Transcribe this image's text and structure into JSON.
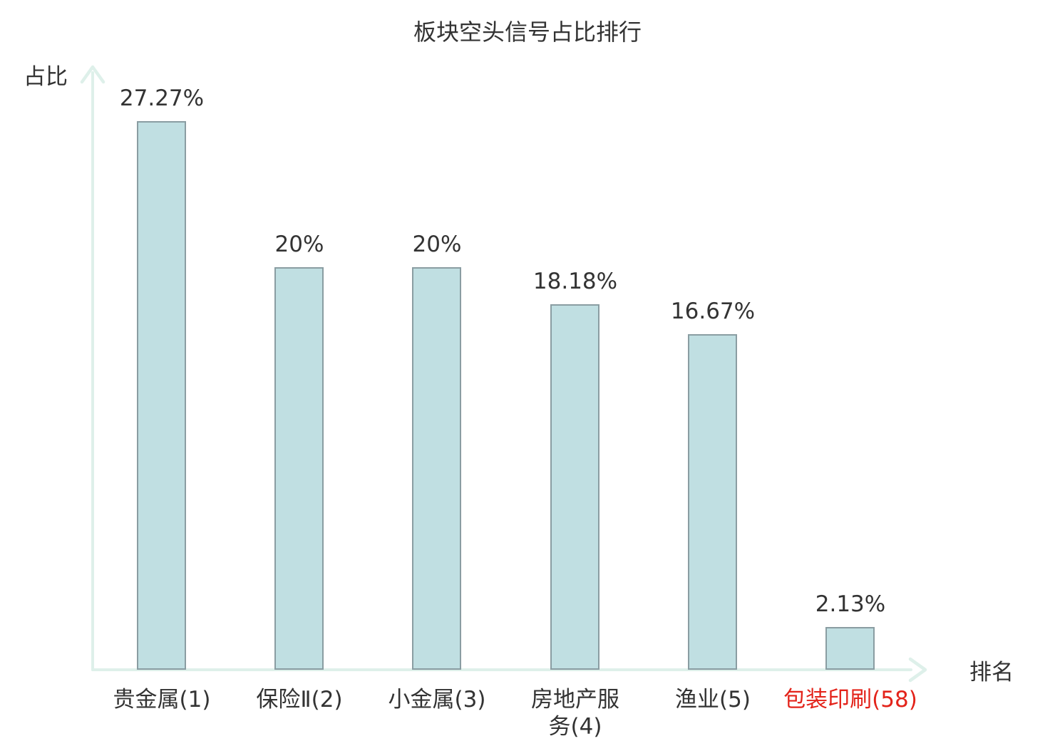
{
  "chart_data": {
    "type": "bar",
    "title": "板块空头信号占比排行",
    "ylabel": "占比",
    "xlabel": "排名",
    "categories": [
      {
        "label": "贵金属(1)",
        "rank": 1,
        "highlighted": false
      },
      {
        "label": "保险Ⅱ(2)",
        "rank": 2,
        "highlighted": false
      },
      {
        "label": "小金属(3)",
        "rank": 3,
        "highlighted": false
      },
      {
        "label": "房地产服务(4)",
        "rank": 4,
        "highlighted": false,
        "wrap_width": 132
      },
      {
        "label": "渔业(5)",
        "rank": 5,
        "highlighted": false
      },
      {
        "label": "包装印刷(58)",
        "rank": 58,
        "highlighted": true
      }
    ],
    "values": [
      27.27,
      20,
      20,
      18.18,
      16.67,
      2.13
    ],
    "value_labels": [
      "27.27%",
      "20%",
      "20%",
      "18.18%",
      "16.67%",
      "2.13%"
    ],
    "ylim": [
      0,
      29
    ],
    "grid": false,
    "legend": "none",
    "value_label_position": "above-bars",
    "axis_style": "arrow-axes",
    "colors": {
      "background": "#ffffff",
      "bar_fill": "#c0dfe2",
      "bar_border": "#8a9da2",
      "axis": "#def0ea",
      "text": "#333333",
      "highlight": "#e3231a"
    }
  }
}
